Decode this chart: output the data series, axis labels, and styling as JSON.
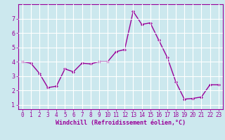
{
  "x": [
    0,
    1,
    2,
    3,
    4,
    5,
    6,
    7,
    8,
    9,
    10,
    11,
    12,
    13,
    14,
    15,
    16,
    17,
    18,
    19,
    20,
    21,
    22,
    23
  ],
  "y": [
    4.0,
    3.9,
    3.2,
    2.2,
    2.3,
    3.5,
    3.3,
    3.9,
    3.85,
    4.0,
    4.0,
    4.7,
    4.85,
    7.5,
    6.6,
    6.7,
    5.5,
    4.3,
    2.6,
    1.4,
    1.45,
    1.55,
    2.4,
    2.4
  ],
  "line_color": "#990099",
  "marker": "D",
  "marker_size": 2,
  "bg_color": "#cce8ee",
  "grid_color": "#b0d8e0",
  "xlabel": "Windchill (Refroidissement éolien,°C)",
  "xlabel_color": "#990099",
  "tick_color": "#990099",
  "ylim": [
    0.7,
    8.0
  ],
  "xlim": [
    -0.5,
    23.5
  ],
  "yticks": [
    1,
    2,
    3,
    4,
    5,
    6,
    7
  ],
  "xticks": [
    0,
    1,
    2,
    3,
    4,
    5,
    6,
    7,
    8,
    9,
    10,
    11,
    12,
    13,
    14,
    15,
    16,
    17,
    18,
    19,
    20,
    21,
    22,
    23
  ],
  "linewidth": 1.0,
  "tick_fontsize": 5.5,
  "xlabel_fontsize": 6.0
}
